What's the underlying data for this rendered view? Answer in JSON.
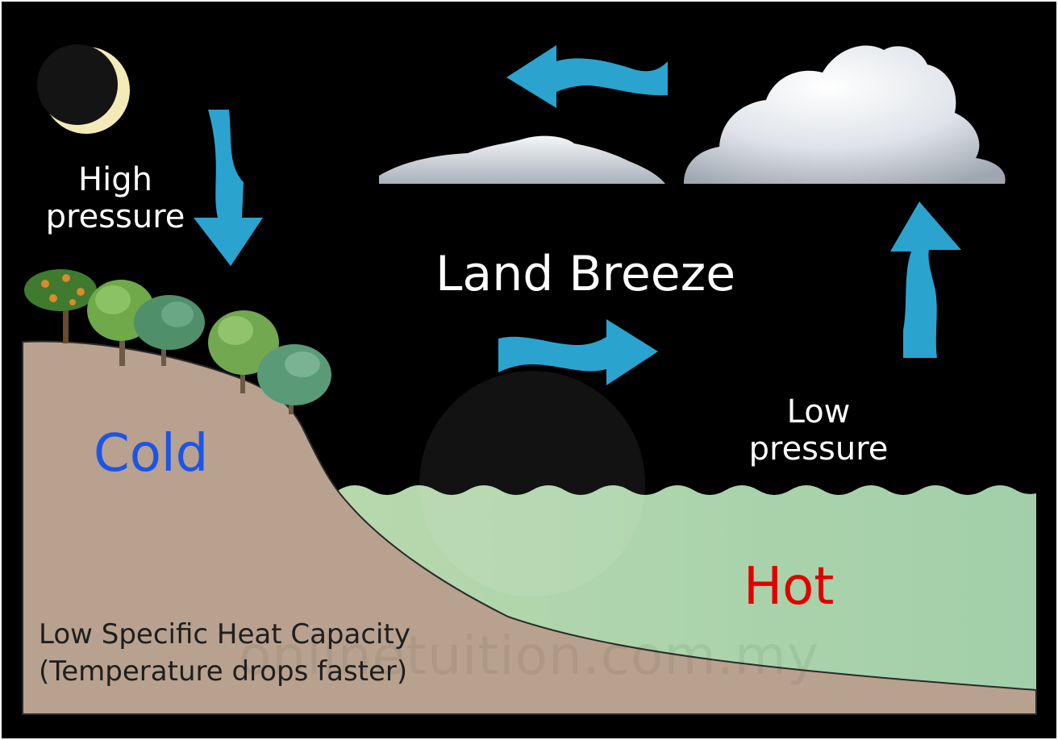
{
  "diagram": {
    "title": "Land Breeze",
    "land_pressure": [
      "High",
      "pressure"
    ],
    "sea_pressure": [
      "Low",
      "pressure"
    ],
    "land_temperature": "Cold",
    "sea_temperature": "Hot",
    "land_caption": [
      "Low Specific Heat Capacity",
      "(Temperature drops faster)"
    ],
    "watermark": "onlinetuition.com.my"
  },
  "colors": {
    "background": "#000000",
    "land": "#b8a18e",
    "sea": "#a5cfa8",
    "arrow": "#2aa3cf",
    "moon_glow": "#f3eab8",
    "cold_text": "#1a55e8",
    "hot_text": "#e00000",
    "label_text": "#ffffff",
    "caption_text": "#1e1e1e"
  },
  "icons": [
    "moon-icon",
    "tree-icon",
    "cloud-icon",
    "arrow-down-icon",
    "arrow-left-icon",
    "arrow-right-icon",
    "arrow-up-icon",
    "watermark-logo"
  ]
}
